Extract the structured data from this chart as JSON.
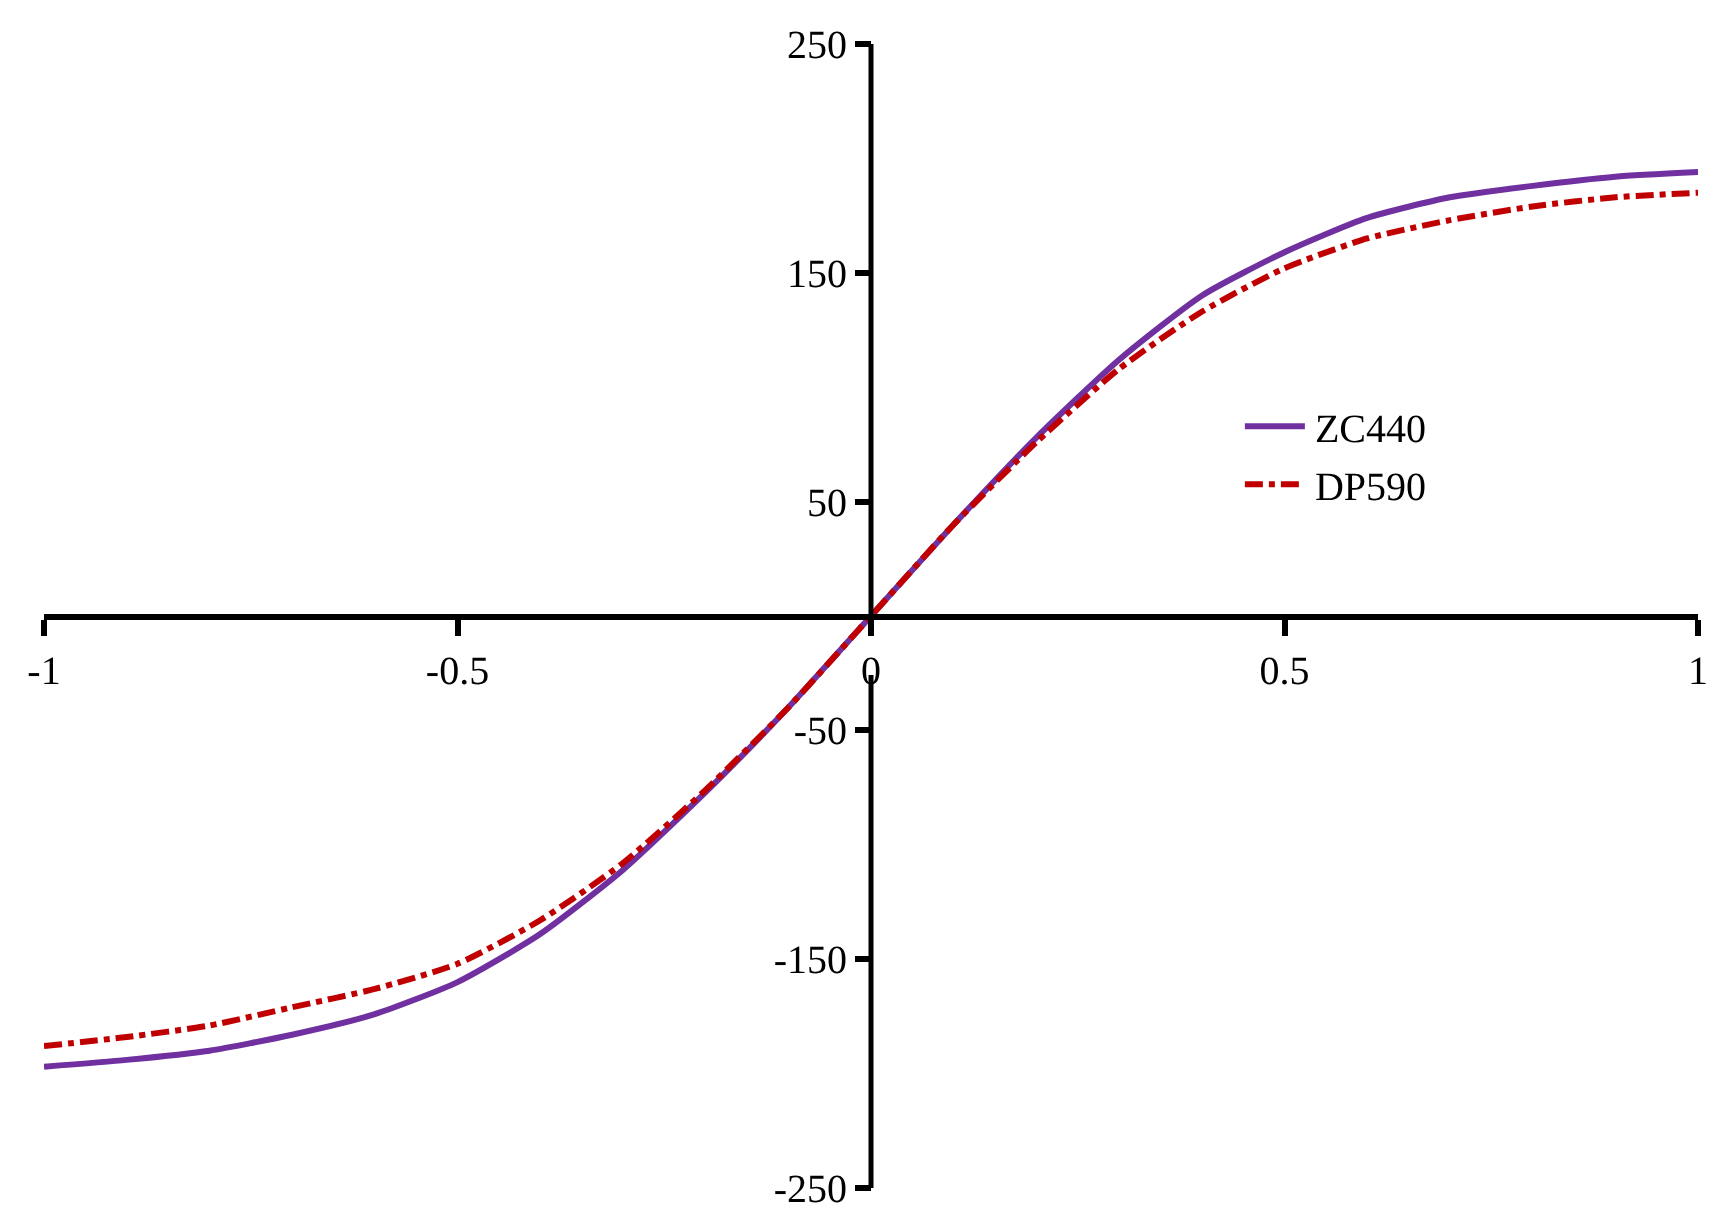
{
  "chart_data": {
    "type": "line",
    "x": [
      -1,
      -0.9,
      -0.8,
      -0.7,
      -0.6,
      -0.5,
      -0.4,
      -0.3,
      -0.2,
      -0.1,
      0,
      0.1,
      0.2,
      0.3,
      0.4,
      0.5,
      0.6,
      0.7,
      0.8,
      0.9,
      1
    ],
    "series": [
      {
        "name": "ZC440",
        "color": "#7030a0",
        "line_style": "solid",
        "values": [
          -197,
          -194,
          -190,
          -183,
          -174,
          -160,
          -139,
          -111,
          -77,
          -40,
          0,
          40,
          78,
          112,
          140,
          159,
          174,
          183,
          188,
          192,
          194
        ]
      },
      {
        "name": "DP590",
        "color": "#c00000",
        "line_style": "dashdot",
        "values": [
          -188,
          -184,
          -179,
          -171,
          -163,
          -152,
          -133,
          -108,
          -76,
          -40,
          0,
          40,
          76,
          108,
          133,
          152,
          165,
          173,
          179,
          183,
          185
        ]
      }
    ],
    "xlim": [
      -1,
      1
    ],
    "xticks": [
      -1,
      -0.5,
      0,
      0.5,
      1
    ],
    "ylim": [
      -250,
      250
    ],
    "yticks": [
      -250,
      -150,
      -50,
      50,
      150,
      250
    ],
    "legend": "right",
    "marker": "none"
  }
}
